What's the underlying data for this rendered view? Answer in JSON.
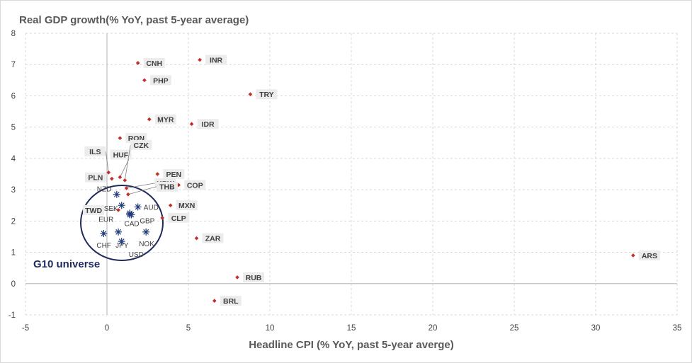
{
  "chart_data": {
    "type": "scatter",
    "title": "",
    "ylabel": "Real GDP growth(% YoY, past 5-year average)",
    "xlabel": "Headline CPI (% YoY, past 5-year averge)",
    "xlim": [
      -5,
      35
    ],
    "ylim": [
      -1,
      8
    ],
    "xticks": [
      "-5",
      "0",
      "5",
      "10",
      "15",
      "20",
      "25",
      "30",
      "35"
    ],
    "yticks": [
      "-1",
      "0",
      "1",
      "2",
      "3",
      "4",
      "5",
      "6",
      "7",
      "8"
    ],
    "grid": true,
    "emerging_points": [
      {
        "label": "CNH",
        "x": 1.9,
        "y": 7.05
      },
      {
        "label": "INR",
        "x": 5.7,
        "y": 7.15
      },
      {
        "label": "PHP",
        "x": 2.3,
        "y": 6.5
      },
      {
        "label": "TRY",
        "x": 8.8,
        "y": 6.05
      },
      {
        "label": "MYR",
        "x": 2.6,
        "y": 5.25
      },
      {
        "label": "IDR",
        "x": 5.2,
        "y": 5.1
      },
      {
        "label": "RON",
        "x": 0.8,
        "y": 4.65
      },
      {
        "label": "ILS",
        "x": 0.1,
        "y": 3.55
      },
      {
        "label": "HUF",
        "x": 0.8,
        "y": 3.4
      },
      {
        "label": "CZK",
        "x": 1.1,
        "y": 3.3
      },
      {
        "label": "PLN",
        "x": 0.3,
        "y": 3.35
      },
      {
        "label": "PEN",
        "x": 3.1,
        "y": 3.5
      },
      {
        "label": "KRW",
        "x": 1.2,
        "y": 3.05
      },
      {
        "label": "COP",
        "x": 4.4,
        "y": 3.15
      },
      {
        "label": "THB",
        "x": 1.3,
        "y": 2.85
      },
      {
        "label": "MXN",
        "x": 3.9,
        "y": 2.5
      },
      {
        "label": "TWD",
        "x": 0.7,
        "y": 2.35
      },
      {
        "label": "CLP",
        "x": 3.4,
        "y": 2.1
      },
      {
        "label": "ZAR",
        "x": 5.5,
        "y": 1.45
      },
      {
        "label": "ARS",
        "x": 32.3,
        "y": 0.9
      },
      {
        "label": "RUB",
        "x": 8.0,
        "y": 0.2
      },
      {
        "label": "BRL",
        "x": 6.6,
        "y": -0.55
      }
    ],
    "g10_points": [
      {
        "label": "NZD",
        "x": 0.6,
        "y": 2.85
      },
      {
        "label": "SEK",
        "x": 0.9,
        "y": 2.5
      },
      {
        "label": "AUD",
        "x": 1.9,
        "y": 2.45
      },
      {
        "label": "GBP",
        "x": 1.4,
        "y": 2.25
      },
      {
        "label": "CAD",
        "x": 1.5,
        "y": 2.2
      },
      {
        "label": "EUR",
        "x": 1.4,
        "y": 2.2
      },
      {
        "label": "CHF",
        "x": -0.2,
        "y": 1.6
      },
      {
        "label": "JPY",
        "x": 0.7,
        "y": 1.65
      },
      {
        "label": "NOK",
        "x": 2.4,
        "y": 1.65
      },
      {
        "label": "USD",
        "x": 0.9,
        "y": 1.35
      }
    ],
    "annotation": "G10 universe"
  }
}
